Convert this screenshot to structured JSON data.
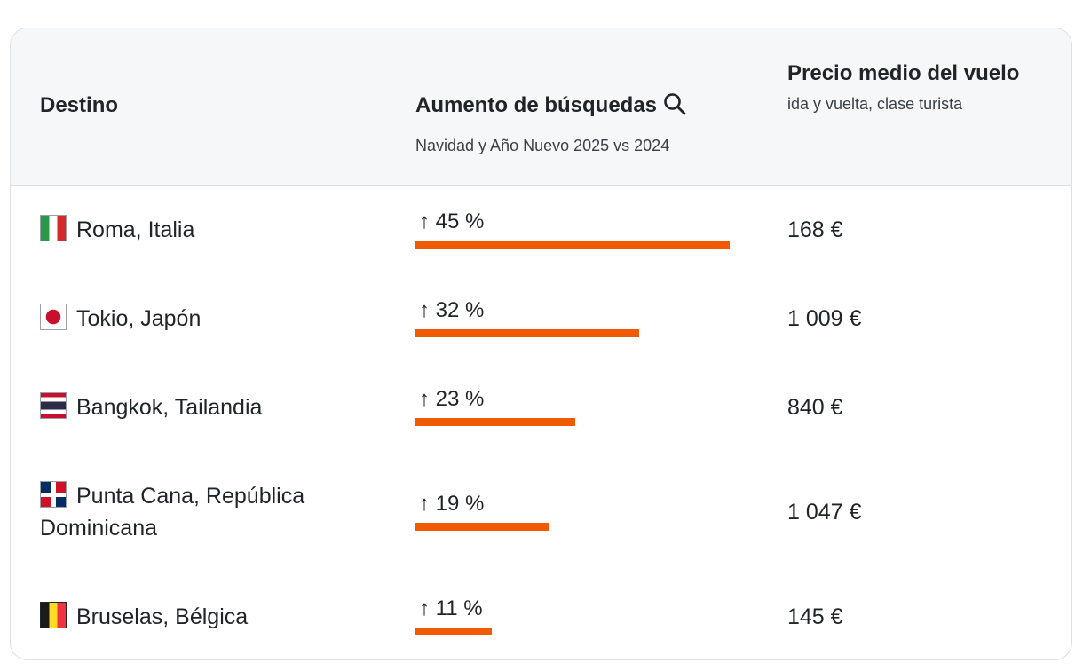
{
  "table": {
    "headers": {
      "destination": "Destino",
      "increase_title": "Aumento de búsquedas",
      "increase_subtitle": "Navidad y Año Nuevo 2025 vs 2024",
      "price_title": "Precio medio del vuelo",
      "price_subtitle": "ida y vuelta, clase turista"
    },
    "rows": [
      {
        "destination": "Roma, Italia",
        "flag": "italy-flag",
        "increase": "↑ 45 %",
        "increase_value": 45,
        "price": "168 €"
      },
      {
        "destination": "Tokio, Japón",
        "flag": "japan-flag",
        "increase": "↑ 32 %",
        "increase_value": 32,
        "price": "1 009 €"
      },
      {
        "destination": "Bangkok, Tailandia",
        "flag": "thailand-flag",
        "increase": "↑ 23 %",
        "increase_value": 23,
        "price": "840 €"
      },
      {
        "destination": "Punta Cana, República Dominicana",
        "flag": "dominican-republic-flag",
        "increase": "↑ 19 %",
        "increase_value": 19,
        "price": "1 047 €"
      },
      {
        "destination": "Bruselas, Bélgica",
        "flag": "belgium-flag",
        "increase": "↑ 11 %",
        "increase_value": 11,
        "price": "145 €"
      }
    ]
  },
  "colors": {
    "bar": "#f05a00",
    "header_bg": "#f6f7f9",
    "border": "#dde0e5"
  },
  "icons": {
    "search": "search-icon"
  }
}
